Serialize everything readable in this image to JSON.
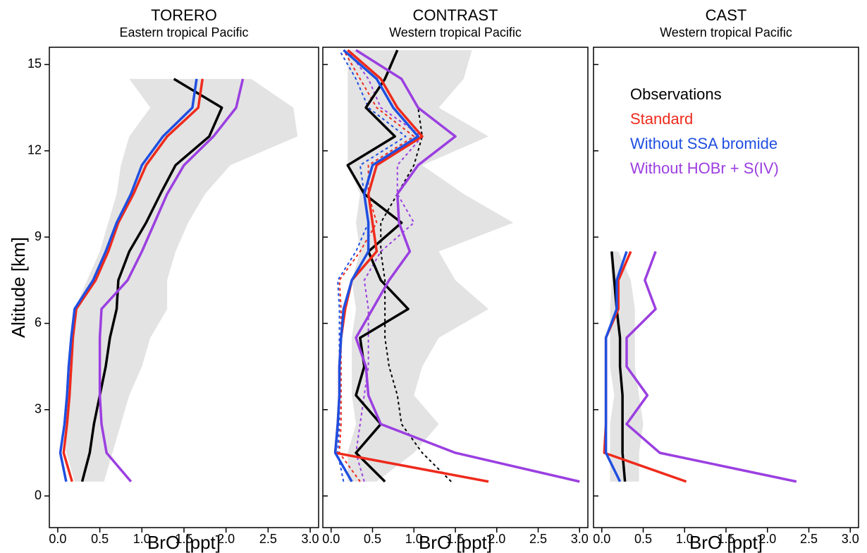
{
  "chart_data": [
    {
      "type": "line",
      "title": "TORERO",
      "subtitle": "Eastern tropical Pacific",
      "xlabel": "BrO [ppt]",
      "ylabel": "Altitude [km]",
      "xlim": [
        -0.1,
        3.1
      ],
      "ylim": [
        -1.1,
        15.6
      ],
      "xticks": [
        {
          "value": 0,
          "label": "0.0"
        },
        0.5,
        {
          "value": 1,
          "label": "1.0"
        },
        1.5,
        {
          "value": 2,
          "label": "2.0"
        },
        2.5,
        {
          "value": 3,
          "label": "3.0"
        }
      ],
      "yticks": [
        0,
        3,
        6,
        9,
        12,
        15
      ],
      "show_ytick_labels": true,
      "altitude": [
        0.5,
        1.5,
        2.5,
        3.5,
        4.5,
        5.5,
        6.5,
        7.5,
        8.5,
        9.5,
        10.5,
        11.5,
        12.5,
        13.5,
        14.5
      ],
      "band": {
        "color": "#e3e3e3",
        "low": [
          0.2,
          0.1,
          0.1,
          0.1,
          0.15,
          0.15,
          0.2,
          0.35,
          0.5,
          0.6,
          0.7,
          0.75,
          0.85,
          1.1,
          0.85
        ],
        "high": [
          0.55,
          0.65,
          0.75,
          0.85,
          1.0,
          1.1,
          1.3,
          1.3,
          1.4,
          1.55,
          1.75,
          2.05,
          2.85,
          2.8,
          2.3
        ]
      },
      "series": [
        {
          "color": "#000000",
          "values": [
            0.29,
            0.38,
            0.43,
            0.5,
            0.57,
            0.62,
            0.7,
            0.72,
            0.85,
            1.05,
            1.22,
            1.4,
            1.8,
            1.95,
            1.38
          ]
        },
        {
          "color": "#ee2a1c",
          "values": [
            0.17,
            0.07,
            0.11,
            0.14,
            0.16,
            0.18,
            0.22,
            0.45,
            0.6,
            0.72,
            0.9,
            1.05,
            1.3,
            1.67,
            1.72
          ]
        },
        {
          "color": "#1f4fe0",
          "values": [
            0.1,
            0.03,
            0.08,
            0.11,
            0.13,
            0.16,
            0.2,
            0.42,
            0.57,
            0.7,
            0.87,
            1.0,
            1.25,
            1.6,
            1.65
          ]
        },
        {
          "color": "#9b3fe0",
          "values": [
            0.87,
            0.58,
            0.52,
            0.5,
            0.5,
            0.5,
            0.52,
            0.83,
            1.0,
            1.15,
            1.3,
            1.5,
            1.85,
            2.12,
            2.2
          ]
        }
      ]
    },
    {
      "type": "line",
      "title": "CONTRAST",
      "subtitle": "Western tropical Pacific",
      "xlabel": "BrO [ppt]",
      "xlim": [
        -0.1,
        3.1
      ],
      "ylim": [
        -1.1,
        15.6
      ],
      "xticks": [
        {
          "value": 0,
          "label": "0.0"
        },
        0.5,
        {
          "value": 1,
          "label": "1.0"
        },
        1.5,
        {
          "value": 2,
          "label": "2.0"
        },
        2.5,
        {
          "value": 3,
          "label": "3.0"
        }
      ],
      "yticks": [
        0,
        3,
        6,
        9,
        12,
        15
      ],
      "show_ytick_labels": false,
      "altitude": [
        0.5,
        1.5,
        2.5,
        3.5,
        4.5,
        5.5,
        6.5,
        7.5,
        8.5,
        9.5,
        10.5,
        11.5,
        12.5,
        13.5,
        14.5,
        15.5
      ],
      "band": {
        "color": "#e3e3e3",
        "low": [
          0.2,
          0.2,
          0.3,
          0.25,
          0.25,
          0.25,
          0.3,
          0.25,
          0.35,
          0.3,
          0.35,
          0.2,
          0.2,
          0.2,
          0.2,
          0.2
        ],
        "high": [
          0.55,
          1.0,
          1.3,
          1.0,
          1.1,
          1.3,
          1.9,
          1.5,
          1.3,
          2.2,
          1.6,
          1.1,
          1.9,
          1.3,
          1.6,
          1.7
        ]
      },
      "series": [
        {
          "color": "#000000",
          "dashed": true,
          "values": [
            1.45,
            1.1,
            0.85,
            0.8,
            0.7,
            0.65,
            0.65,
            0.65,
            0.6,
            0.6,
            0.8,
            1.0,
            1.1,
            1.05,
            null,
            null
          ]
        },
        {
          "color": "#ee2a1c",
          "dashed": true,
          "values": [
            0.35,
            0.1,
            0.12,
            0.12,
            0.12,
            0.12,
            0.12,
            0.1,
            0.35,
            0.55,
            0.45,
            0.45,
            1.0,
            0.55,
            0.35,
            0.15
          ]
        },
        {
          "color": "#1f4fe0",
          "dashed": true,
          "values": [
            0.15,
            0.08,
            0.1,
            0.1,
            0.1,
            0.1,
            0.1,
            0.08,
            0.3,
            0.45,
            0.4,
            0.35,
            0.9,
            0.45,
            0.3,
            0.1
          ]
        },
        {
          "color": "#9b3fe0",
          "dashed": true,
          "values": [
            0.4,
            0.3,
            0.35,
            0.4,
            0.45,
            0.45,
            0.45,
            0.4,
            0.6,
            1.0,
            0.8,
            0.8,
            1.1,
            0.6,
            0.45,
            0.2
          ]
        },
        {
          "color": "#000000",
          "values": [
            0.65,
            0.3,
            0.6,
            0.3,
            0.4,
            0.35,
            0.93,
            0.6,
            0.45,
            0.85,
            0.4,
            0.2,
            0.77,
            0.42,
            0.65,
            0.8
          ]
        },
        {
          "color": "#ee2a1c",
          "values": [
            1.9,
            0.05,
            0.08,
            0.1,
            0.1,
            0.12,
            0.17,
            0.25,
            0.55,
            0.5,
            0.45,
            0.55,
            1.1,
            0.8,
            0.6,
            0.2
          ]
        },
        {
          "color": "#1f4fe0",
          "values": [
            0.25,
            0.05,
            0.08,
            0.1,
            0.1,
            0.12,
            0.15,
            0.25,
            0.45,
            0.45,
            0.4,
            0.5,
            1.05,
            0.75,
            0.55,
            0.15
          ]
        },
        {
          "color": "#9b3fe0",
          "values": [
            3.0,
            1.5,
            0.6,
            0.45,
            0.42,
            0.3,
            0.5,
            0.7,
            0.95,
            0.82,
            0.8,
            1.05,
            1.5,
            1.05,
            0.85,
            0.3
          ]
        }
      ]
    },
    {
      "type": "line",
      "title": "CAST",
      "subtitle": "Western tropical Pacific",
      "xlabel": "BrO [ppt]",
      "xlim": [
        -0.1,
        3.1
      ],
      "ylim": [
        -1.1,
        15.6
      ],
      "xticks": [
        {
          "value": 0,
          "label": "0.0"
        },
        0.5,
        {
          "value": 1,
          "label": "1.0"
        },
        1.5,
        {
          "value": 2,
          "label": "2.0"
        },
        2.5,
        {
          "value": 3,
          "label": "3.0"
        }
      ],
      "yticks": [
        0,
        3,
        6,
        9,
        12,
        15
      ],
      "show_ytick_labels": false,
      "legend": "upper left",
      "altitude": [
        0.5,
        1.5,
        2.5,
        3.5,
        4.5,
        5.5,
        6.5,
        7.5,
        8.5
      ],
      "band": {
        "color": "#e3e3e3",
        "low": [
          0.1,
          0.1,
          0.1,
          0.15,
          0.1,
          0.1,
          0.1,
          0.12,
          0.1
        ],
        "high": [
          0.45,
          0.45,
          0.5,
          0.45,
          0.4,
          0.4,
          0.4,
          0.35,
          0.2
        ]
      },
      "series": [
        {
          "name": "Observations",
          "color": "#000000",
          "values": [
            0.28,
            0.25,
            0.25,
            0.25,
            0.22,
            0.22,
            0.18,
            0.15,
            0.12
          ]
        },
        {
          "name": "Standard",
          "color": "#ee2a1c",
          "values": [
            1.02,
            0.03,
            0.05,
            0.05,
            0.05,
            0.05,
            0.2,
            0.2,
            0.35
          ]
        },
        {
          "name": "Without SSA bromide",
          "color": "#1f4fe0",
          "values": [
            0.22,
            0.05,
            0.05,
            0.05,
            0.05,
            0.05,
            0.18,
            0.18,
            0.3
          ]
        },
        {
          "name": "Without HOBr + S(IV)",
          "color": "#9b3fe0",
          "values": [
            2.35,
            0.7,
            0.3,
            0.55,
            0.3,
            0.3,
            0.65,
            0.52,
            0.65
          ]
        }
      ]
    }
  ]
}
